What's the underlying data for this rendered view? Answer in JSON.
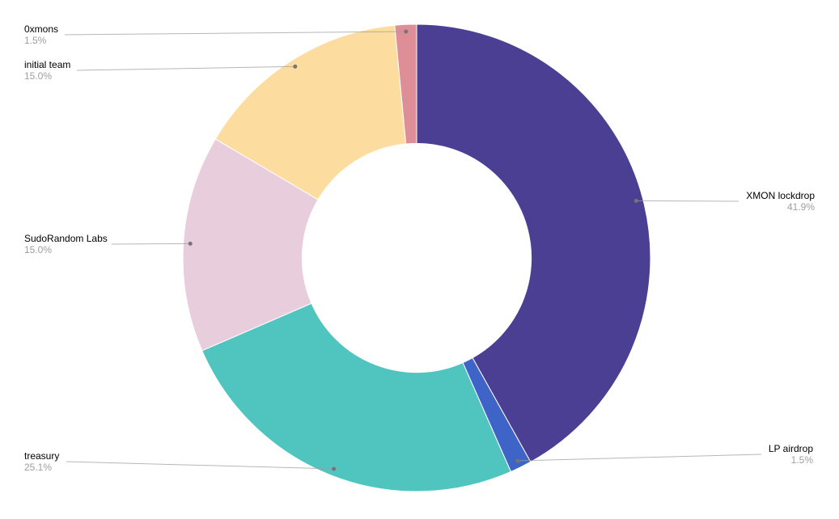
{
  "chart_data": {
    "type": "pie",
    "subtype": "donut",
    "title": "",
    "inner_radius_ratio": 0.49,
    "start_angle_deg": 0,
    "direction": "clockwise",
    "legend_position": "outside-callout-labels",
    "background": "#ffffff",
    "label_color": "#000000",
    "pct_color": "#9e9e9e",
    "leader_line_color": "#9e9e9e",
    "leader_dot_color": "#757575",
    "slices": [
      {
        "label": "XMON lockdrop",
        "value": 41.9,
        "pct_label": "41.9%",
        "color": "#4b3f93"
      },
      {
        "label": "LP airdrop",
        "value": 1.5,
        "pct_label": "1.5%",
        "color": "#3e64c8"
      },
      {
        "label": "treasury",
        "value": 25.1,
        "pct_label": "25.1%",
        "color": "#50c4bf"
      },
      {
        "label": "SudoRandom Labs",
        "value": 15.0,
        "pct_label": "15.0%",
        "color": "#e8cddd"
      },
      {
        "label": "initial team",
        "value": 15.0,
        "pct_label": "15.0%",
        "color": "#fcdd9f"
      },
      {
        "label": "0xmons",
        "value": 1.5,
        "pct_label": "1.5%",
        "color": "#dd8e96"
      }
    ]
  }
}
